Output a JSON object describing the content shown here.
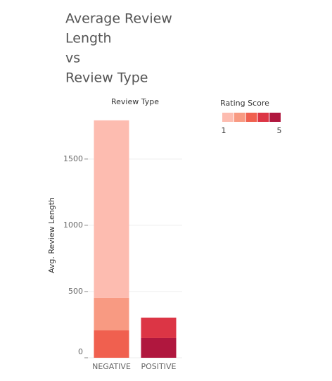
{
  "chart_data": {
    "type": "stacked_bar",
    "title_lines": [
      "Average Review",
      "Length",
      "vs",
      "Review Type"
    ],
    "x_header": "Review Type",
    "y_label": "Avg. Review Length",
    "categories": [
      "NEGATIVE",
      "POSITIVE"
    ],
    "series": [
      {
        "color": "#fdbcb0",
        "values": [
          1340,
          null
        ]
      },
      {
        "color": "#f89a82",
        "values": [
          245,
          null
        ]
      },
      {
        "color": "#f0604f",
        "values": [
          207,
          null
        ]
      },
      {
        "color": "#dc3545",
        "values": [
          null,
          154
        ]
      },
      {
        "color": "#b0173e",
        "values": [
          null,
          149
        ]
      }
    ],
    "ylim": [
      0,
      1850
    ],
    "yticks": [
      0,
      500,
      1000,
      1500
    ],
    "grid": true,
    "legend": {
      "title": "Rating Score",
      "low": 1,
      "high": 5
    }
  }
}
